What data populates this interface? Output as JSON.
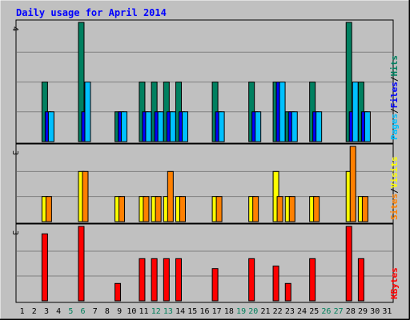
{
  "chart_data": [
    {
      "type": "bar",
      "title": "Daily usage for April 2014",
      "categories": [
        "1",
        "2",
        "3",
        "4",
        "5",
        "6",
        "7",
        "8",
        "9",
        "10",
        "11",
        "12",
        "13",
        "14",
        "15",
        "16",
        "17",
        "18",
        "19",
        "20",
        "21",
        "22",
        "23",
        "24",
        "25",
        "26",
        "27",
        "28",
        "29",
        "30",
        "31"
      ],
      "weekend_days": [
        "5",
        "6",
        "12",
        "13",
        "19",
        "20",
        "26",
        "27"
      ],
      "panels": [
        {
          "name": "pages-files-hits",
          "ylim": [
            0,
            4
          ],
          "max_label": "4",
          "series": [
            {
              "name": "Hits",
              "color": "#008060",
              "values": [
                0,
                0,
                2,
                0,
                0,
                4,
                0,
                0,
                1,
                0,
                2,
                2,
                2,
                2,
                0,
                0,
                2,
                0,
                0,
                2,
                0,
                2,
                1,
                0,
                2,
                0,
                0,
                4,
                2,
                0,
                0
              ]
            },
            {
              "name": "Files",
              "color": "#0000ff",
              "values": [
                0,
                0,
                1,
                0,
                0,
                1,
                0,
                0,
                1,
                0,
                1,
                1,
                1,
                1,
                0,
                0,
                1,
                0,
                0,
                1,
                0,
                2,
                1,
                0,
                1,
                0,
                0,
                1,
                1,
                0,
                0
              ]
            },
            {
              "name": "Pages",
              "color": "#00c0ff",
              "values": [
                0,
                0,
                1,
                0,
                0,
                2,
                0,
                0,
                1,
                0,
                1,
                1,
                1,
                1,
                0,
                0,
                1,
                0,
                0,
                1,
                0,
                2,
                1,
                0,
                1,
                0,
                0,
                2,
                1,
                0,
                0
              ]
            }
          ],
          "legend_separator": "/"
        },
        {
          "name": "visits-sites",
          "ylim": [
            0,
            3
          ],
          "max_label": "3",
          "series": [
            {
              "name": "Visits",
              "color": "#ffff00",
              "values": [
                0,
                0,
                1,
                0,
                0,
                2,
                0,
                0,
                1,
                0,
                1,
                1,
                1,
                1,
                0,
                0,
                1,
                0,
                0,
                1,
                0,
                2,
                1,
                0,
                1,
                0,
                0,
                2,
                1,
                0,
                0
              ]
            },
            {
              "name": "Sites",
              "color": "#ff8000",
              "values": [
                0,
                0,
                1,
                0,
                0,
                2,
                0,
                0,
                1,
                0,
                1,
                1,
                2,
                1,
                0,
                0,
                1,
                0,
                0,
                1,
                0,
                1,
                1,
                0,
                1,
                0,
                0,
                3,
                1,
                0,
                0
              ]
            }
          ],
          "legend_separator": "/"
        },
        {
          "name": "kbytes",
          "ylim": [
            0,
            3
          ],
          "max_label": "3",
          "series": [
            {
              "name": "KBytes",
              "color": "#ff0000",
              "values": [
                0,
                0,
                2.7,
                0,
                0,
                3,
                0,
                0,
                0.7,
                0,
                1.7,
                1.7,
                1.7,
                1.7,
                0,
                0,
                1.3,
                0,
                0,
                1.7,
                0,
                1.4,
                0.7,
                0,
                1.7,
                0,
                0,
                3,
                1.7,
                0,
                0
              ]
            }
          ]
        }
      ]
    }
  ],
  "colors": {
    "background": "#c0c0c0",
    "title": "#0000ff",
    "weekday_label": "#000000",
    "weekend_label": "#00805c",
    "gridline": "#808080"
  }
}
